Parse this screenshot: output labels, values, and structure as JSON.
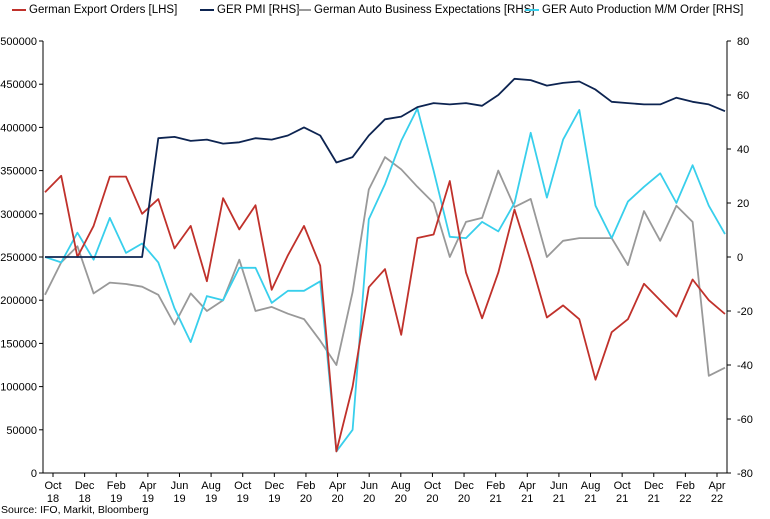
{
  "chart_data": {
    "type": "line",
    "x_labels": [
      [
        "Oct",
        "18"
      ],
      [
        "Dec",
        "18"
      ],
      [
        "Feb",
        "19"
      ],
      [
        "Apr",
        "19"
      ],
      [
        "Jun",
        "19"
      ],
      [
        "Aug",
        "19"
      ],
      [
        "Oct",
        "19"
      ],
      [
        "Dec",
        "19"
      ],
      [
        "Feb",
        "20"
      ],
      [
        "Apr",
        "20"
      ],
      [
        "Jun",
        "20"
      ],
      [
        "Aug",
        "20"
      ],
      [
        "Oct",
        "20"
      ],
      [
        "Dec",
        "20"
      ],
      [
        "Feb",
        "21"
      ],
      [
        "Apr",
        "21"
      ],
      [
        "Jun",
        "21"
      ],
      [
        "Aug",
        "21"
      ],
      [
        "Oct",
        "21"
      ],
      [
        "Dec",
        "21"
      ],
      [
        "Feb",
        "22"
      ],
      [
        "Apr",
        "22"
      ]
    ],
    "y_left": {
      "min": 0,
      "max": 500000,
      "step": 50000,
      "ticks": [
        "0",
        "50000",
        "100000",
        "150000",
        "200000",
        "250000",
        "300000",
        "350000",
        "400000",
        "450000",
        "500000"
      ]
    },
    "y_right": {
      "min": -80,
      "max": 80,
      "step": 20,
      "ticks": [
        "-80",
        "-60",
        "-40",
        "-20",
        "0",
        "20",
        "40",
        "60",
        "80"
      ]
    },
    "series": [
      {
        "name": "German Export Orders [LHS]",
        "axis": "left",
        "color": "#c0312b",
        "values": [
          325000,
          344000,
          250000,
          286000,
          343000,
          343000,
          300000,
          317000,
          260000,
          286000,
          222000,
          318000,
          282000,
          310000,
          212000,
          252000,
          286000,
          240000,
          25000,
          100000,
          215000,
          236000,
          160000,
          272000,
          276000,
          338000,
          232000,
          179000,
          232000,
          305000,
          245000,
          180000,
          194000,
          178000,
          108000,
          163000,
          178000,
          219000,
          200000,
          181000,
          224000,
          200000,
          184000
        ]
      },
      {
        "name": "GER PMI [RHS]",
        "axis": "right",
        "color": "#0d2451",
        "values": [
          0,
          0,
          0,
          0,
          0,
          0,
          0,
          44,
          44.5,
          43,
          43.5,
          42,
          42.5,
          44,
          43.5,
          45,
          48,
          45,
          35,
          37,
          45,
          51,
          52,
          55.5,
          57,
          56.5,
          57,
          56,
          60,
          66,
          65.5,
          63.5,
          64.5,
          65,
          62,
          57.5,
          57,
          56.5,
          56.5,
          59,
          57.5,
          56.5,
          54
        ]
      },
      {
        "name": "German Auto Business Expectations [RHS]",
        "axis": "right",
        "color": "#999999",
        "values": [
          -14,
          -2,
          4,
          -13.5,
          -9.5,
          -10,
          -11,
          -14,
          -25,
          -13.5,
          -20,
          -16,
          -1,
          -20,
          -18.5,
          -21,
          -23,
          -31,
          -40,
          -13,
          25,
          37,
          32.5,
          26,
          20,
          0,
          13,
          14.5,
          32,
          18.5,
          21.5,
          0,
          6,
          7,
          7,
          7,
          -3,
          17,
          6,
          19,
          13,
          -44,
          -41
        ]
      },
      {
        "name": "GER Auto Production M/M Order [RHS]",
        "axis": "right",
        "color": "#38cfec",
        "values": [
          0,
          -2,
          9,
          -1,
          14.5,
          1.5,
          5,
          -2,
          -19,
          -31.5,
          -14.5,
          -16,
          -4,
          -4,
          -17,
          -12.5,
          -12.5,
          -9,
          -72,
          -64,
          14,
          27,
          43,
          55,
          32,
          7.5,
          7,
          13,
          9.5,
          20,
          46,
          22,
          43.5,
          54.5,
          19,
          7,
          20.5,
          26,
          31,
          20,
          34,
          19,
          8.5
        ]
      }
    ],
    "grid": false,
    "legend_position": "top"
  },
  "source_text": "Source: IFO, Markit, Bloomberg"
}
